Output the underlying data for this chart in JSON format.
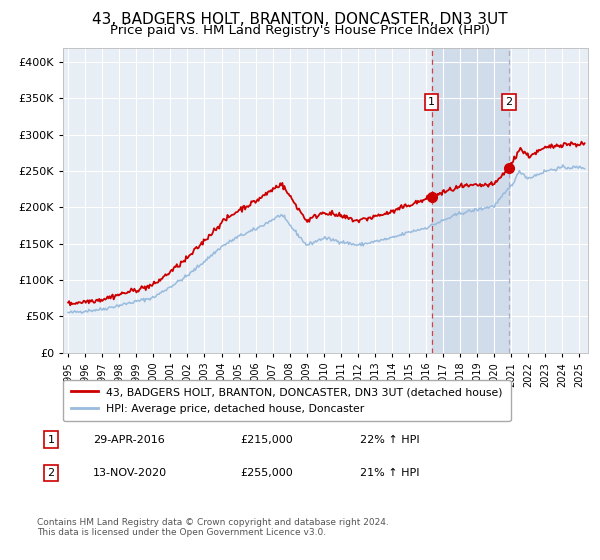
{
  "title": "43, BADGERS HOLT, BRANTON, DONCASTER, DN3 3UT",
  "subtitle": "Price paid vs. HM Land Registry's House Price Index (HPI)",
  "ytick_values": [
    0,
    50000,
    100000,
    150000,
    200000,
    250000,
    300000,
    350000,
    400000
  ],
  "ylim": [
    0,
    420000
  ],
  "xlim_start": 1994.7,
  "xlim_end": 2025.5,
  "marker1_x": 2016.33,
  "marker1_y": 215000,
  "marker2_x": 2020.87,
  "marker2_y": 255000,
  "marker1_label": "1",
  "marker2_label": "2",
  "vline1_x": 2016.33,
  "vline2_x": 2020.87,
  "legend_line1": "43, BADGERS HOLT, BRANTON, DONCASTER, DN3 3UT (detached house)",
  "legend_line2": "HPI: Average price, detached house, Doncaster",
  "table_row1_num": "1",
  "table_row1_date": "29-APR-2016",
  "table_row1_price": "£215,000",
  "table_row1_hpi": "22% ↑ HPI",
  "table_row2_num": "2",
  "table_row2_date": "13-NOV-2020",
  "table_row2_price": "£255,000",
  "table_row2_hpi": "21% ↑ HPI",
  "footer": "Contains HM Land Registry data © Crown copyright and database right 2024.\nThis data is licensed under the Open Government Licence v3.0.",
  "house_line_color": "#cc0000",
  "hpi_line_color": "#99bbdd",
  "plot_bg_color": "#e8eef5",
  "shaded_region_color": "#d0dcea",
  "grid_color": "#ffffff",
  "vline1_color": "#cc4444",
  "vline2_color": "#aaaacc",
  "title_fontsize": 11,
  "subtitle_fontsize": 9.5
}
